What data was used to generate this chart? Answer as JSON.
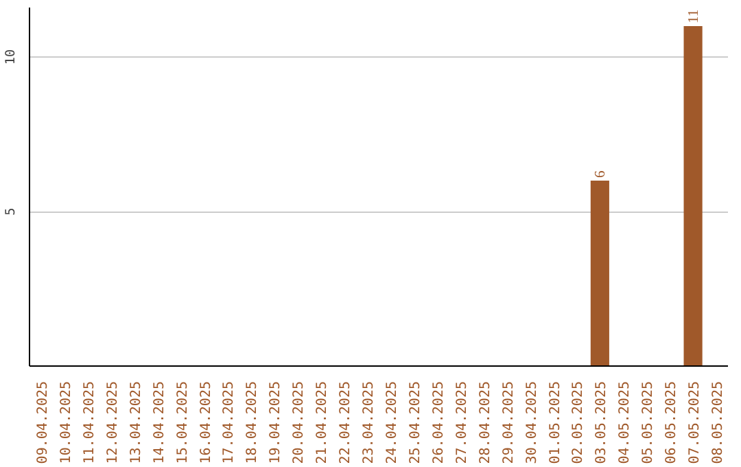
{
  "chart_data": {
    "type": "bar",
    "categories": [
      "09.04.2025",
      "10.04.2025",
      "11.04.2025",
      "12.04.2025",
      "13.04.2025",
      "14.04.2025",
      "15.04.2025",
      "16.04.2025",
      "17.04.2025",
      "18.04.2025",
      "19.04.2025",
      "20.04.2025",
      "21.04.2025",
      "22.04.2025",
      "23.04.2025",
      "24.04.2025",
      "25.04.2025",
      "26.04.2025",
      "27.04.2025",
      "28.04.2025",
      "29.04.2025",
      "30.04.2025",
      "01.05.2025",
      "02.05.2025",
      "03.05.2025",
      "04.05.2025",
      "05.05.2025",
      "06.05.2025",
      "07.05.2025",
      "08.05.2025"
    ],
    "values": [
      0,
      0,
      0,
      0,
      0,
      0,
      0,
      0,
      0,
      0,
      0,
      0,
      0,
      0,
      0,
      0,
      0,
      0,
      0,
      0,
      0,
      0,
      0,
      0,
      6,
      0,
      0,
      0,
      11,
      0
    ],
    "value_labels": [
      null,
      null,
      null,
      null,
      null,
      null,
      null,
      null,
      null,
      null,
      null,
      null,
      null,
      null,
      null,
      null,
      null,
      null,
      null,
      null,
      null,
      null,
      null,
      null,
      "6",
      null,
      null,
      null,
      "11",
      null
    ],
    "color": "#a0592a",
    "ylim": [
      0,
      11.6
    ],
    "yticks": [
      5,
      10
    ],
    "grid": "y"
  }
}
